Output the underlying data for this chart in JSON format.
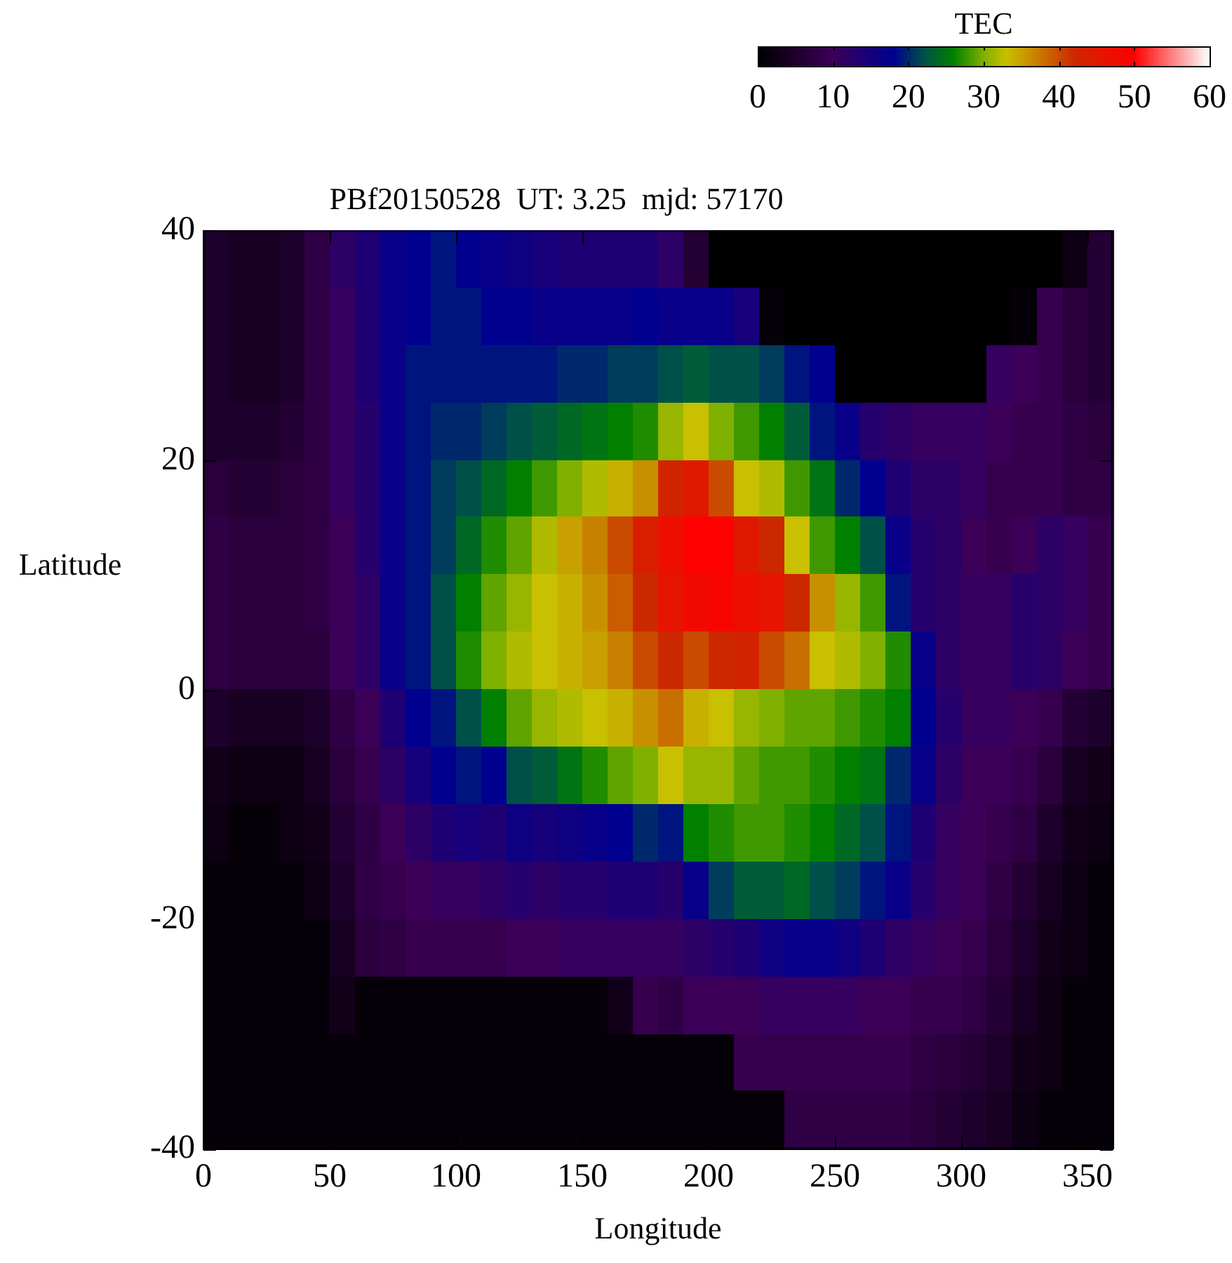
{
  "chart_data": {
    "type": "heatmap",
    "title": "PBf20150528  UT: 3.25  mjd: 57170",
    "xlabel": "Longitude",
    "ylabel": "Latitude",
    "clabel": "TEC",
    "clim": [
      0,
      60
    ],
    "cticks": [
      0,
      10,
      20,
      30,
      40,
      50,
      60
    ],
    "xlim": [
      0,
      360
    ],
    "xticks": [
      0,
      50,
      100,
      150,
      200,
      250,
      300,
      350
    ],
    "ylim": [
      -40,
      40
    ],
    "yticks": [
      -40,
      -20,
      0,
      20,
      40
    ],
    "x": [
      5,
      15,
      25,
      35,
      45,
      55,
      65,
      75,
      85,
      95,
      105,
      115,
      125,
      135,
      145,
      155,
      165,
      175,
      185,
      195,
      205,
      215,
      225,
      235,
      245,
      255,
      265,
      275,
      285,
      295,
      305,
      315,
      325,
      335,
      345,
      355
    ],
    "y": [
      37.5,
      32.5,
      27.5,
      22.5,
      17.5,
      12.5,
      7.5,
      2.5,
      -2.5,
      -7.5,
      -12.5,
      -17.5,
      -22.5,
      -27.5,
      -32.5,
      -37.5
    ],
    "cells": [
      [
        5,
        4,
        4,
        5,
        8,
        12,
        14,
        17,
        18,
        19,
        18,
        17,
        16,
        15,
        14,
        14,
        14,
        14,
        12,
        6,
        0,
        0,
        0,
        0,
        0,
        0,
        0,
        0,
        0,
        0,
        0,
        0,
        0,
        0,
        2,
        6
      ],
      [
        5,
        4,
        4,
        5,
        8,
        11,
        14,
        17,
        18,
        19,
        19,
        18,
        18,
        17,
        17,
        17,
        17,
        18,
        17,
        17,
        17,
        15,
        1,
        0,
        0,
        0,
        0,
        0,
        0,
        0,
        0,
        0,
        1,
        9,
        7,
        6
      ],
      [
        5,
        4,
        4,
        5,
        8,
        11,
        14,
        17,
        19,
        19,
        19,
        19,
        19,
        19,
        20,
        20,
        21,
        21,
        22,
        23,
        22,
        22,
        21,
        19,
        18,
        0,
        0,
        0,
        0,
        0,
        0,
        11,
        10,
        9,
        7,
        6
      ],
      [
        5,
        5,
        5,
        6,
        8,
        11,
        13,
        17,
        19,
        20,
        20,
        21,
        22,
        23,
        24,
        25,
        26,
        27,
        31,
        33,
        30,
        28,
        26,
        23,
        19,
        17,
        13,
        12,
        11,
        11,
        11,
        10,
        9,
        9,
        8,
        7
      ],
      [
        7,
        6,
        6,
        7,
        8,
        11,
        13,
        17,
        19,
        21,
        22,
        24,
        26,
        28,
        30,
        32,
        34,
        36,
        43,
        45,
        40,
        33,
        32,
        28,
        25,
        20,
        18,
        14,
        12,
        12,
        11,
        9,
        9,
        9,
        8,
        8
      ],
      [
        8,
        7,
        7,
        7,
        8,
        10,
        13,
        17,
        19,
        21,
        24,
        27,
        29,
        32,
        35,
        37,
        40,
        44,
        47,
        50,
        50,
        45,
        42,
        33,
        28,
        26,
        22,
        17,
        13,
        12,
        10,
        9,
        10,
        12,
        11,
        9
      ],
      [
        8,
        7,
        7,
        7,
        8,
        10,
        12,
        17,
        19,
        22,
        26,
        29,
        31,
        33,
        34,
        36,
        39,
        42,
        46,
        48,
        49,
        47,
        46,
        42,
        36,
        31,
        28,
        19,
        13,
        12,
        11,
        11,
        13,
        12,
        11,
        9
      ],
      [
        8,
        7,
        7,
        7,
        7,
        10,
        12,
        17,
        19,
        22,
        27,
        30,
        32,
        33,
        34,
        35,
        37,
        40,
        42,
        40,
        42,
        43,
        40,
        38,
        33,
        32,
        30,
        27,
        17,
        12,
        11,
        11,
        13,
        12,
        10,
        9
      ],
      [
        5,
        4,
        4,
        4,
        5,
        8,
        10,
        14,
        18,
        19,
        22,
        26,
        29,
        31,
        32,
        33,
        34,
        36,
        38,
        34,
        33,
        31,
        30,
        29,
        29,
        28,
        27,
        26,
        18,
        13,
        11,
        11,
        10,
        9,
        6,
        5
      ],
      [
        3,
        2,
        2,
        2,
        4,
        7,
        9,
        12,
        15,
        18,
        19,
        18,
        22,
        23,
        25,
        27,
        29,
        30,
        33,
        31,
        31,
        29,
        28,
        28,
        27,
        26,
        25,
        20,
        17,
        12,
        10,
        10,
        9,
        7,
        4,
        3
      ],
      [
        2,
        1,
        1,
        2,
        3,
        6,
        8,
        10,
        12,
        14,
        15,
        14,
        16,
        15,
        16,
        17,
        18,
        20,
        19,
        26,
        27,
        28,
        28,
        27,
        26,
        24,
        22,
        19,
        14,
        11,
        10,
        9,
        8,
        5,
        3,
        2
      ],
      [
        1,
        1,
        1,
        1,
        2,
        5,
        8,
        9,
        10,
        11,
        11,
        12,
        13,
        12,
        13,
        13,
        14,
        14,
        13,
        17,
        21,
        23,
        23,
        24,
        22,
        21,
        19,
        17,
        13,
        11,
        10,
        8,
        6,
        4,
        2,
        1
      ],
      [
        1,
        1,
        1,
        1,
        1,
        4,
        7,
        8,
        9,
        9,
        9,
        9,
        10,
        10,
        11,
        11,
        11,
        11,
        11,
        12,
        13,
        14,
        16,
        17,
        17,
        16,
        14,
        12,
        11,
        10,
        9,
        7,
        5,
        3,
        2,
        1
      ],
      [
        1,
        1,
        1,
        1,
        1,
        3,
        1,
        1,
        1,
        1,
        1,
        1,
        1,
        1,
        1,
        1,
        3,
        9,
        8,
        10,
        10,
        10,
        11,
        11,
        11,
        11,
        10,
        10,
        9,
        9,
        8,
        6,
        4,
        2,
        1,
        1
      ],
      [
        1,
        1,
        1,
        1,
        1,
        1,
        1,
        1,
        1,
        1,
        1,
        1,
        1,
        1,
        1,
        1,
        1,
        1,
        1,
        1,
        1,
        9,
        9,
        9,
        9,
        9,
        9,
        9,
        8,
        7,
        6,
        5,
        3,
        2,
        1,
        1
      ],
      [
        1,
        1,
        1,
        1,
        1,
        1,
        1,
        1,
        1,
        1,
        1,
        1,
        1,
        1,
        1,
        1,
        1,
        1,
        1,
        1,
        1,
        1,
        1,
        8,
        8,
        8,
        8,
        8,
        7,
        6,
        5,
        4,
        2,
        1,
        1,
        1
      ]
    ]
  }
}
